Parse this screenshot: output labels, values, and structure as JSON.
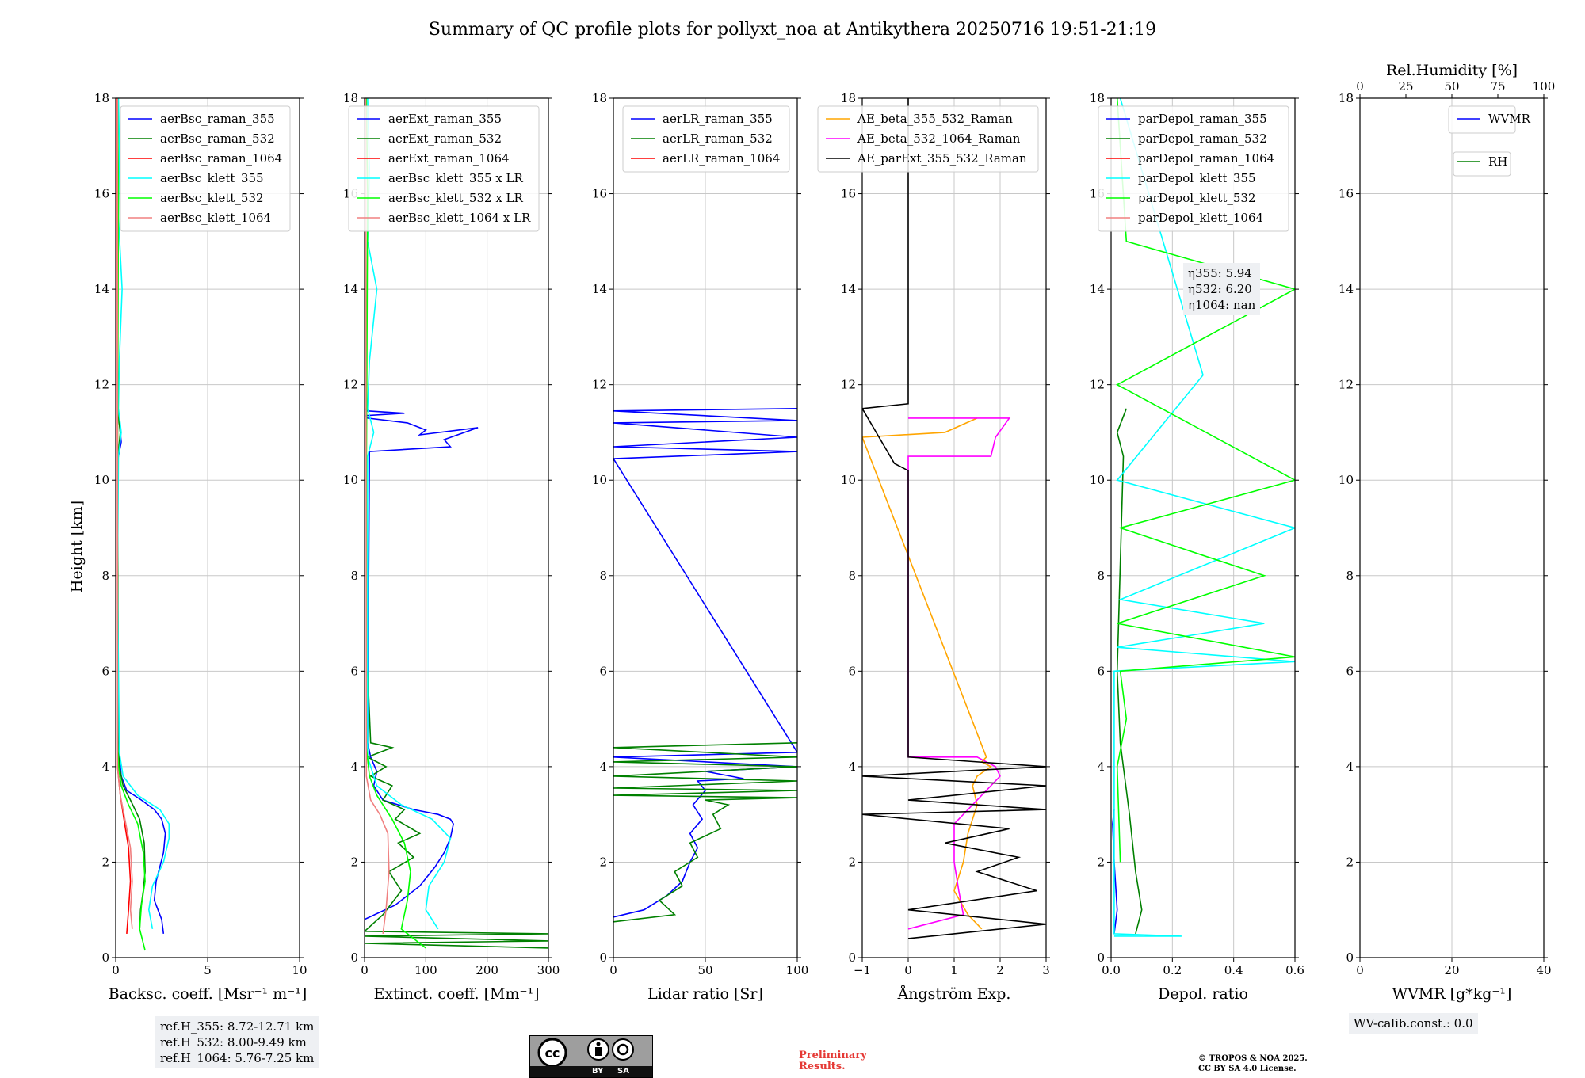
{
  "title": "Summary of QC profile plots for pollyxt_noa at Antikythera 20250716 19:51-21:19",
  "y_axis_label": "Height [km]",
  "ref_heights": [
    "ref.H_355: 8.72-12.71 km",
    "ref.H_532: 8.00-9.49 km",
    "ref.H_1064: 5.76-7.25 km"
  ],
  "eta_values": [
    "η355: 5.94",
    "η532: 6.20",
    "η1064: nan"
  ],
  "wv_calib": "WV-calib.const.: 0.0",
  "preliminary": "Preliminary\nResults.",
  "copyright": "© TROPOS & NOA 2025.\nCC BY SA 4.0 License.",
  "license_badge": {
    "text_by": "BY",
    "text_sa": "SA"
  },
  "chart_data": [
    {
      "type": "line",
      "xlabel": "Backsc. coeff. [Msr⁻¹ m⁻¹]",
      "ylabel": "Height [km]",
      "xlim": [
        0,
        10
      ],
      "ylim": [
        0,
        18
      ],
      "xticks": [
        "0",
        "5",
        "10"
      ],
      "yticks": [
        "0",
        "2",
        "4",
        "6",
        "8",
        "10",
        "12",
        "14",
        "16",
        "18"
      ],
      "grid": true,
      "legend": "top-right",
      "series": [
        {
          "name": "aerBsc_raman_355",
          "color": "#0000ff",
          "x": [
            2.6,
            2.5,
            2.1,
            2.2,
            2.6,
            2.7,
            2.5,
            2.1,
            1.4,
            0.6,
            0.3,
            0.2,
            0.15,
            0.12,
            0.1,
            0.3,
            0.2,
            0.1,
            0.1,
            0.1
          ],
          "y": [
            0.5,
            0.8,
            1.2,
            1.6,
            2.2,
            2.6,
            2.9,
            3.1,
            3.3,
            3.5,
            3.8,
            4.2,
            4.5,
            6,
            10.4,
            10.8,
            11.2,
            11.5,
            14,
            18
          ]
        },
        {
          "name": "aerBsc_raman_532",
          "color": "#008000",
          "x": [
            1.3,
            1.35,
            1.5,
            1.6,
            1.55,
            1.3,
            0.8,
            0.4,
            0.2,
            0.15,
            0.1,
            0.25,
            0.1,
            0.1
          ],
          "y": [
            0.6,
            1.0,
            1.4,
            1.8,
            2.4,
            2.9,
            3.3,
            3.6,
            4.0,
            4.4,
            10.4,
            11.0,
            11.5,
            18
          ]
        },
        {
          "name": "aerBsc_raman_1064",
          "color": "#ff0000",
          "x": [
            0.6,
            0.7,
            0.8,
            0.7,
            0.45,
            0.25,
            0.1,
            0.08
          ],
          "y": [
            0.5,
            1.0,
            1.6,
            2.3,
            2.9,
            3.4,
            4.0,
            18
          ]
        },
        {
          "name": "aerBsc_klett_355",
          "color": "#00ffff",
          "x": [
            2.0,
            1.8,
            2.0,
            2.6,
            2.9,
            2.9,
            2.4,
            1.2,
            0.4,
            0.2,
            0.15,
            0.1,
            0.15,
            0.3,
            0.15,
            0.2,
            0.35,
            0.15,
            0.2,
            0.15
          ],
          "y": [
            0.6,
            1.0,
            1.5,
            2.0,
            2.5,
            2.8,
            3.1,
            3.4,
            3.8,
            4.3,
            6,
            8,
            10.5,
            11.0,
            11.5,
            12.5,
            14.0,
            15.5,
            17.0,
            18
          ]
        },
        {
          "name": "aerBsc_klett_532",
          "color": "#00ff00",
          "x": [
            1.6,
            1.3,
            1.4,
            1.6,
            1.5,
            1.2,
            0.7,
            0.3,
            0.15,
            0.1,
            0.1,
            0.15,
            0.1
          ],
          "y": [
            0.15,
            0.6,
            1.1,
            1.6,
            2.2,
            2.8,
            3.2,
            3.6,
            4.0,
            4.5,
            10,
            16,
            18
          ]
        },
        {
          "name": "aerBsc_klett_1064",
          "color": "#f08080",
          "x": [
            0.9,
            0.8,
            0.9,
            0.8,
            0.5,
            0.25,
            0.1,
            0.1
          ],
          "y": [
            0.6,
            1.0,
            1.6,
            2.3,
            2.9,
            3.4,
            4.0,
            18
          ]
        }
      ]
    },
    {
      "type": "line",
      "xlabel": "Extinct. coeff. [Mm⁻¹]",
      "xlim": [
        0,
        300
      ],
      "ylim": [
        0,
        18
      ],
      "xticks": [
        "0",
        "100",
        "200",
        "300"
      ],
      "yticks": [
        "0",
        "2",
        "4",
        "6",
        "8",
        "10",
        "12",
        "14",
        "16",
        "18"
      ],
      "grid": true,
      "legend": "top-right",
      "series": [
        {
          "name": "aerExt_raman_355",
          "color": "#0000ff",
          "x": [
            0,
            50,
            90,
            115,
            130,
            140,
            145,
            140,
            120,
            80,
            30,
            15,
            20,
            10,
            5,
            8,
            140,
            130,
            185,
            90,
            100,
            70,
            5,
            0,
            65,
            5,
            0
          ],
          "y": [
            0.8,
            1.1,
            1.5,
            1.9,
            2.2,
            2.5,
            2.8,
            2.9,
            3.0,
            3.1,
            3.3,
            3.6,
            3.9,
            4.2,
            4.5,
            10.6,
            10.7,
            10.85,
            11.1,
            10.95,
            11.05,
            11.2,
            11.3,
            11.35,
            11.4,
            11.45,
            11.5
          ]
        },
        {
          "name": "aerExt_raman_532",
          "color": "#008000",
          "x": [
            300,
            0,
            300,
            0,
            300,
            0,
            30,
            60,
            40,
            80,
            55,
            90,
            50,
            65,
            30,
            45,
            10,
            35,
            5,
            45,
            10,
            5
          ],
          "y": [
            0.2,
            0.3,
            0.35,
            0.45,
            0.5,
            0.55,
            0.9,
            1.4,
            1.8,
            2.1,
            2.4,
            2.6,
            2.9,
            3.1,
            3.3,
            3.6,
            3.8,
            4.0,
            4.2,
            4.4,
            4.5,
            6
          ]
        },
        {
          "name": "aerExt_raman_1064",
          "color": "#ff0000",
          "x": [
            0,
            0
          ],
          "y": [
            12,
            18
          ]
        },
        {
          "name": "aerBsc_klett_355 x LR",
          "color": "#00ffff",
          "x": [
            120,
            100,
            105,
            130,
            140,
            110,
            60,
            20,
            5,
            5,
            15,
            5,
            8,
            20,
            5,
            8,
            5
          ],
          "y": [
            0.6,
            1.0,
            1.5,
            2.0,
            2.5,
            2.9,
            3.2,
            3.6,
            4.2,
            10.5,
            11.0,
            11.5,
            12.5,
            14.0,
            15.0,
            16.5,
            18
          ]
        },
        {
          "name": "aerBsc_klett_532 x LR",
          "color": "#00ff00",
          "x": [
            100,
            60,
            70,
            75,
            65,
            45,
            20,
            8,
            3,
            3,
            5,
            3
          ],
          "y": [
            0.2,
            0.6,
            1.2,
            1.8,
            2.4,
            2.9,
            3.4,
            3.8,
            4.4,
            10,
            16,
            18
          ]
        },
        {
          "name": "aerBsc_klett_1064 x LR",
          "color": "#f08080",
          "x": [
            30,
            35,
            40,
            38,
            25,
            10,
            3,
            2
          ],
          "y": [
            0.5,
            1.0,
            1.8,
            2.6,
            3.0,
            3.3,
            3.8,
            18
          ]
        }
      ]
    },
    {
      "type": "line",
      "xlabel": "Lidar ratio [Sr]",
      "xlim": [
        0,
        120
      ],
      "ylim": [
        0,
        18
      ],
      "xticks": [
        "0",
        "50",
        "100"
      ],
      "yticks": [
        "0",
        "2",
        "4",
        "6",
        "8",
        "10",
        "12",
        "14",
        "16",
        "18"
      ],
      "grid": true,
      "legend": "top-right",
      "series": [
        {
          "name": "aerLR_raman_355",
          "color": "#0000ff",
          "x": [
            0,
            20,
            35,
            45,
            50,
            55,
            50,
            58,
            52,
            60,
            55,
            85,
            60,
            120,
            0,
            120,
            0,
            120,
            0,
            120,
            0,
            120,
            0,
            120
          ],
          "y": [
            0.85,
            1.0,
            1.3,
            1.6,
            2.0,
            2.3,
            2.6,
            2.9,
            3.2,
            3.5,
            3.7,
            3.75,
            3.9,
            4.0,
            4.2,
            4.3,
            10.45,
            10.6,
            10.7,
            10.9,
            11.2,
            11.25,
            11.45,
            11.5
          ]
        },
        {
          "name": "aerLR_raman_532",
          "color": "#008000",
          "x": [
            0,
            40,
            30,
            45,
            40,
            55,
            50,
            70,
            65,
            75,
            60,
            120,
            0,
            120,
            0,
            120,
            0,
            120,
            0,
            120,
            0,
            120
          ],
          "y": [
            0.75,
            0.9,
            1.2,
            1.5,
            1.8,
            2.1,
            2.4,
            2.7,
            3.0,
            3.2,
            3.3,
            3.35,
            3.4,
            3.5,
            3.55,
            3.7,
            3.8,
            4.0,
            4.1,
            4.2,
            4.4,
            4.5
          ]
        },
        {
          "name": "aerLR_raman_1064",
          "color": "#ff0000",
          "x": [],
          "y": []
        }
      ]
    },
    {
      "type": "line",
      "xlabel": "Ångström Exp.",
      "xlim": [
        -1,
        3
      ],
      "ylim": [
        0,
        18
      ],
      "xticks": [
        "−1",
        "0",
        "1",
        "2",
        "3"
      ],
      "yticks": [
        "0",
        "2",
        "4",
        "6",
        "8",
        "10",
        "12",
        "14",
        "16",
        "18"
      ],
      "grid": true,
      "legend": "top-right",
      "series": [
        {
          "name": "AE_beta_355_532_Raman",
          "color": "#ffa500",
          "x": [
            1.6,
            1.3,
            1.0,
            1.2,
            1.3,
            1.5,
            1.4,
            1.5,
            1.8,
            1.6,
            1.7,
            -1,
            0.8,
            1.5
          ],
          "y": [
            0.6,
            0.9,
            1.4,
            2.0,
            2.6,
            3.2,
            3.6,
            3.8,
            4.0,
            4.1,
            4.2,
            10.9,
            11.0,
            11.3
          ]
        },
        {
          "name": "AE_beta_532_1064_Raman",
          "color": "#ff00ff",
          "x": [
            0,
            1.2,
            1.1,
            1.0,
            1.0,
            1.4,
            2.0,
            1.9,
            1.5,
            0,
            0,
            1.8,
            1.9,
            2.2,
            0
          ],
          "y": [
            0.6,
            0.9,
            1.4,
            2.0,
            2.8,
            3.2,
            3.8,
            4.0,
            4.2,
            4.2,
            10.5,
            10.5,
            10.9,
            11.3,
            11.3
          ]
        },
        {
          "name": "AE_parExt_355_532_Raman",
          "color": "#000000",
          "x": [
            0,
            3,
            0,
            2.8,
            1.5,
            2.4,
            0.8,
            2.2,
            -1,
            3,
            0,
            3,
            -1,
            3,
            0,
            0,
            -0.3,
            -1,
            0,
            0
          ],
          "y": [
            0.4,
            0.7,
            1.0,
            1.4,
            1.8,
            2.1,
            2.4,
            2.7,
            3.0,
            3.1,
            3.3,
            3.6,
            3.8,
            4.0,
            4.2,
            10.2,
            10.35,
            11.5,
            11.6,
            18
          ]
        }
      ]
    },
    {
      "type": "line",
      "xlabel": "Depol. ratio",
      "xlim": [
        0,
        0.6
      ],
      "ylim": [
        0,
        18
      ],
      "xticks": [
        "0.0",
        "0.2",
        "0.4",
        "0.6"
      ],
      "yticks": [
        "0",
        "2",
        "4",
        "6",
        "8",
        "10",
        "12",
        "14",
        "16",
        "18"
      ],
      "grid": true,
      "legend": "top-right",
      "series": [
        {
          "name": "parDepol_raman_355",
          "color": "#0000ff",
          "x": [
            0.01,
            0.02,
            0.01,
            0.005,
            0.01
          ],
          "y": [
            0.5,
            1.0,
            2.0,
            2.8,
            3.1
          ]
        },
        {
          "name": "parDepol_raman_532",
          "color": "#008000",
          "x": [
            0.08,
            0.1,
            0.08,
            0.06,
            0.03,
            0.02,
            0.04,
            0.02,
            0.05
          ],
          "y": [
            0.5,
            1.0,
            1.8,
            3.0,
            4.5,
            6,
            10.5,
            11.0,
            11.5
          ]
        },
        {
          "name": "parDepol_raman_1064",
          "color": "#ff0000",
          "x": [],
          "y": []
        },
        {
          "name": "parDepol_klett_355",
          "color": "#00ffff",
          "x": [
            0.01,
            0.23,
            0.01,
            0.01,
            0.6,
            0.02,
            0.5,
            0.03,
            0.6,
            0.02,
            0.3,
            0.03
          ],
          "y": [
            0.45,
            0.45,
            0.5,
            6,
            6.2,
            6.5,
            7.0,
            7.5,
            9.0,
            10.0,
            12.2,
            18
          ]
        },
        {
          "name": "parDepol_klett_532",
          "color": "#00ff00",
          "x": [
            0.03,
            0.02,
            0.05,
            0.03,
            0.6,
            0.02,
            0.5,
            0.03,
            0.6,
            0.02,
            0.6,
            0.05,
            0.02
          ],
          "y": [
            2.0,
            4.0,
            5.0,
            6.0,
            6.3,
            7.0,
            8.0,
            9.0,
            10.0,
            12.0,
            14.0,
            15.0,
            18
          ]
        },
        {
          "name": "parDepol_klett_1064",
          "color": "#f08080",
          "x": [],
          "y": []
        }
      ]
    },
    {
      "type": "line",
      "xlabel": "WVMR [g*kg⁻¹]",
      "top_xlabel": "Rel.Humidity [%]",
      "xlim": [
        0,
        50
      ],
      "ylim": [
        0,
        18
      ],
      "xticks": [
        "0",
        "20",
        "40"
      ],
      "top_xticks": [
        "0",
        "25",
        "50",
        "75",
        "100"
      ],
      "yticks": [
        "0",
        "2",
        "4",
        "6",
        "8",
        "10",
        "12",
        "14",
        "16",
        "18"
      ],
      "grid": true,
      "legend": "top-right",
      "series": [
        {
          "name": "WVMR",
          "color": "#0000ff",
          "x": [],
          "y": []
        },
        {
          "name": "RH",
          "color": "#008000",
          "x": [],
          "y": []
        }
      ]
    }
  ]
}
